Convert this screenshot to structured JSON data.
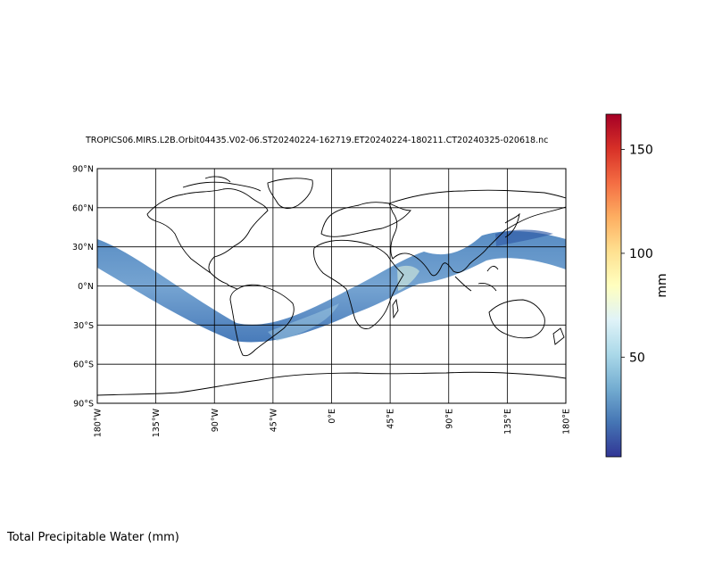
{
  "title": "TROPICS06.MIRS.L2B.Orbit04435.V02-06.ST20240224-162719.ET20240224-180211.CT20240325-020618.nc",
  "caption": "Total Precipitable Water (mm)",
  "map": {
    "projection": "PlateCarree",
    "lon_range": [
      -180,
      180
    ],
    "lat_range": [
      -90,
      90
    ],
    "lat_ticks": [
      {
        "value": 90,
        "label": "90°N"
      },
      {
        "value": 60,
        "label": "60°N"
      },
      {
        "value": 30,
        "label": "30°N"
      },
      {
        "value": 0,
        "label": "0°N"
      },
      {
        "value": -30,
        "label": "30°S"
      },
      {
        "value": -60,
        "label": "60°S"
      },
      {
        "value": -90,
        "label": "90°S"
      }
    ],
    "lon_ticks": [
      {
        "value": -180,
        "label": "180°W"
      },
      {
        "value": -135,
        "label": "135°W"
      },
      {
        "value": -90,
        "label": "90°W"
      },
      {
        "value": -45,
        "label": "45°W"
      },
      {
        "value": 0,
        "label": "0°E"
      },
      {
        "value": 45,
        "label": "45°E"
      },
      {
        "value": 90,
        "label": "90°E"
      },
      {
        "value": 135,
        "label": "135°E"
      },
      {
        "value": 180,
        "label": "180°E"
      }
    ],
    "grid": true,
    "swath": {
      "description_of_field": "Total Precipitable Water",
      "typical_range_mm": [
        10,
        60
      ]
    }
  },
  "colorbar": {
    "label": "mm",
    "min": 2,
    "max": 167,
    "ticks": [
      50,
      100,
      150
    ],
    "colormap": "RdYlBu_r",
    "colors": [
      "#313695",
      "#4575b4",
      "#74add1",
      "#abd9e9",
      "#e0f3f8",
      "#ffffbf",
      "#fee090",
      "#fdae61",
      "#f46d43",
      "#d73027",
      "#a50026"
    ]
  }
}
